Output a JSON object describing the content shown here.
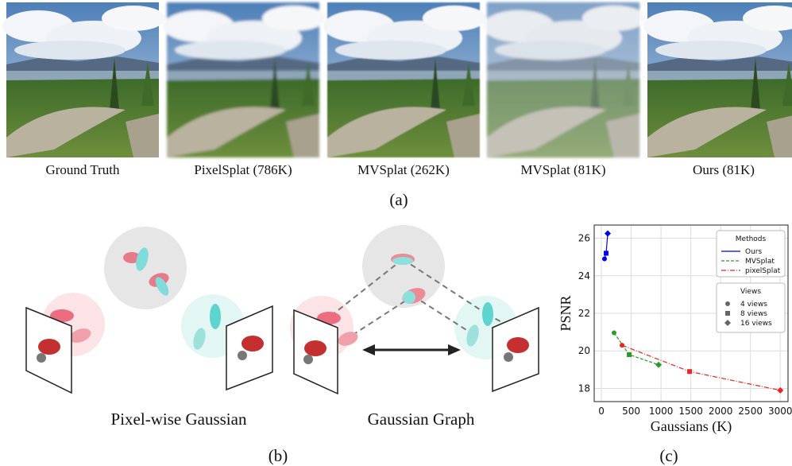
{
  "panel_a": {
    "captions": [
      "Ground Truth",
      "PixelSplat (786K)",
      "MVSplat (262K)",
      "MVSplat (81K)",
      "Ours (81K)"
    ],
    "label": "(a)"
  },
  "panel_b": {
    "captions": [
      "Pixel-wise Gaussian",
      "Gaussian Graph"
    ],
    "label": "(b)"
  },
  "panel_c": {
    "label": "(c)"
  },
  "chart_data": {
    "type": "line",
    "x_label": "Gaussians (K)",
    "y_label": "PSNR",
    "xlim": [
      -120,
      3130
    ],
    "ylim": [
      17.3,
      26.7
    ],
    "xticks": [
      0,
      500,
      1000,
      1500,
      2000,
      2500,
      3000
    ],
    "yticks": [
      18,
      20,
      22,
      24,
      26
    ],
    "grid": true,
    "legend": {
      "title": "Methods",
      "position": "upper right"
    },
    "views": {
      "title": "Views",
      "labels": [
        "4 views",
        "8 views",
        "16 views"
      ]
    },
    "markers": [
      "circle",
      "square",
      "diamond"
    ],
    "series": [
      {
        "name": "Ours",
        "color": "#0000ee",
        "dash": "solid",
        "x": [
          53,
          80,
          107
        ],
        "values": [
          24.9,
          25.2,
          26.25
        ]
      },
      {
        "name": "MVSplat",
        "color": "#2a9a2a",
        "dash": "dashed",
        "x": [
          213,
          467,
          960
        ],
        "values": [
          20.96,
          19.8,
          19.26
        ]
      },
      {
        "name": "pixelSplat",
        "color": "#ee2222",
        "dash": "dashdot",
        "x": [
          347,
          1480,
          3000
        ],
        "values": [
          20.3,
          18.9,
          17.9
        ]
      }
    ]
  }
}
